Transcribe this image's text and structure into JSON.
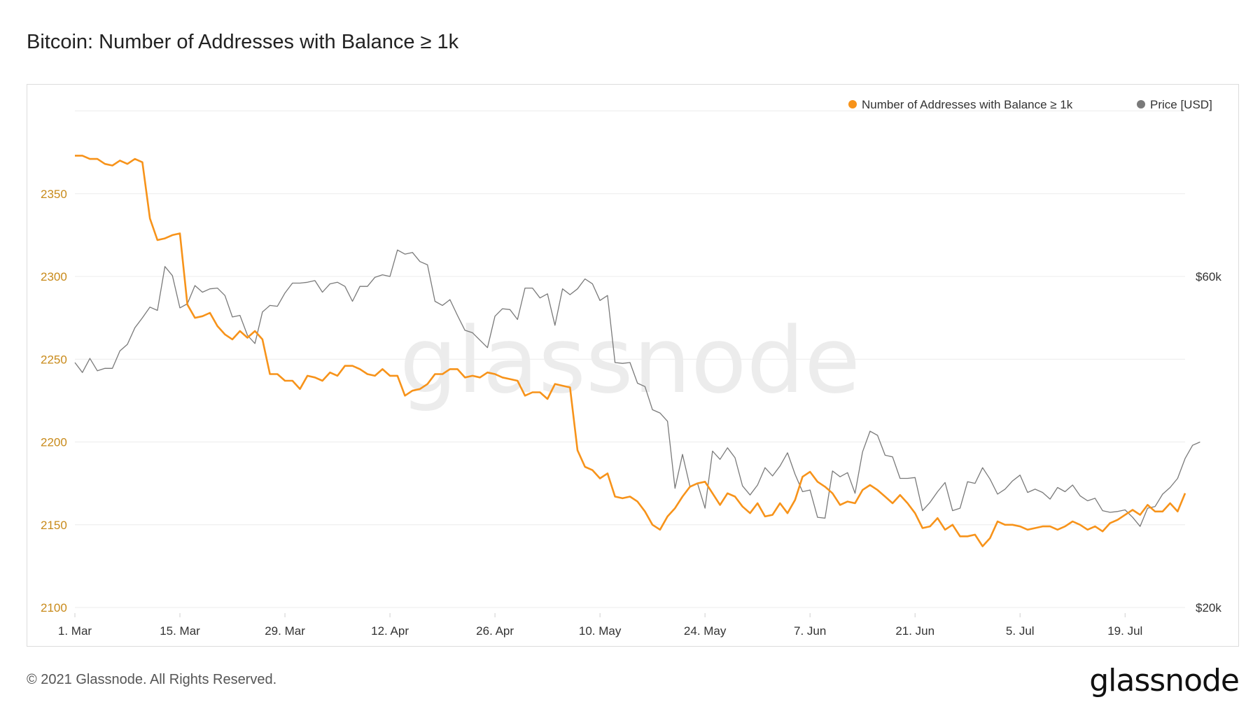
{
  "header": {
    "title": "Bitcoin: Number of Addresses with Balance ≥ 1k"
  },
  "footer": {
    "copyright": "© 2021 Glassnode. All Rights Reserved.",
    "logo_text": "glassnode"
  },
  "watermark": "glassnode",
  "colors": {
    "addresses": "#f7931a",
    "price": "#7a7a7a",
    "grid": "#ececec"
  },
  "chart_data": {
    "type": "line",
    "title": "Bitcoin: Number of Addresses with Balance ≥ 1k",
    "x_ticks": [
      "1. Mar",
      "15. Mar",
      "29. Mar",
      "12. Apr",
      "26. Apr",
      "10. May",
      "24. May",
      "7. Jun",
      "21. Jun",
      "5. Jul",
      "19. Jul"
    ],
    "x_start": "2021-03-01",
    "y_left": {
      "ticks": [
        "2100",
        "2150",
        "2200",
        "2250",
        "2300",
        "2350"
      ],
      "range": [
        2100,
        2400
      ]
    },
    "y_right": {
      "ticks": [
        "$20k",
        "$60k"
      ],
      "range": [
        20000,
        70000
      ]
    },
    "grid": true,
    "legend_position": "top-right",
    "series": [
      {
        "name": "Number of Addresses with Balance ≥ 1k",
        "axis": "left",
        "values": [
          2373,
          2373,
          2371,
          2371,
          2368,
          2367,
          2370,
          2368,
          2371,
          2369,
          2335,
          2322,
          2323,
          2325,
          2326,
          2283,
          2275,
          2276,
          2278,
          2270,
          2265,
          2262,
          2267,
          2263,
          2267,
          2262,
          2241,
          2241,
          2237,
          2237,
          2232,
          2240,
          2239,
          2237,
          2242,
          2240,
          2246,
          2246,
          2244,
          2241,
          2240,
          2244,
          2240,
          2240,
          2228,
          2231,
          2232,
          2235,
          2241,
          2241,
          2244,
          2244,
          2239,
          2240,
          2239,
          2242,
          2241,
          2239,
          2238,
          2237,
          2228,
          2230,
          2230,
          2226,
          2235,
          2234,
          2233,
          2195,
          2185,
          2183,
          2178,
          2181,
          2167,
          2166,
          2167,
          2164,
          2158,
          2150,
          2147,
          2155,
          2160,
          2167,
          2173,
          2175,
          2176,
          2169,
          2162,
          2169,
          2167,
          2161,
          2157,
          2163,
          2155,
          2156,
          2163,
          2157,
          2165,
          2179,
          2182,
          2176,
          2173,
          2169,
          2162,
          2164,
          2163,
          2171,
          2174,
          2171,
          2167,
          2163,
          2168,
          2163,
          2157,
          2148,
          2149,
          2154,
          2147,
          2150,
          2143,
          2143,
          2144,
          2137,
          2142,
          2152,
          2150,
          2150,
          2149,
          2147,
          2148,
          2149,
          2149,
          2147,
          2149,
          2152,
          2150,
          2147,
          2149,
          2146,
          2151,
          2153,
          2156,
          2159,
          2156,
          2162,
          2158,
          2158,
          2163,
          2158,
          2169
        ]
      },
      {
        "name": "Price [USD]",
        "axis": "right",
        "values": [
          49600,
          48400,
          50100,
          48600,
          48900,
          48900,
          51000,
          51800,
          53800,
          55000,
          56300,
          55900,
          61200,
          60100,
          56200,
          56700,
          58900,
          58100,
          58500,
          58600,
          57700,
          55100,
          55300,
          52900,
          51900,
          55700,
          56500,
          56400,
          58000,
          59200,
          59200,
          59300,
          59500,
          58100,
          59100,
          59300,
          58800,
          57000,
          58800,
          58800,
          59900,
          60200,
          60000,
          63200,
          62700,
          62900,
          61800,
          61400,
          57000,
          56500,
          57200,
          55300,
          53500,
          53200,
          52300,
          51400,
          55200,
          56100,
          56000,
          54800,
          58600,
          58600,
          57400,
          57900,
          54100,
          58500,
          57800,
          58500,
          59700,
          59100,
          57100,
          57700,
          49600,
          49500,
          49600,
          47100,
          46700,
          43900,
          43500,
          42500,
          34400,
          38500,
          34600,
          35000,
          32000,
          38900,
          37900,
          39300,
          38100,
          34700,
          33600,
          34800,
          36900,
          35900,
          37100,
          38700,
          36100,
          34000,
          34200,
          30900,
          30800,
          36500,
          35800,
          36300,
          33800,
          38800,
          41300,
          40800,
          38400,
          38200,
          35600,
          35600,
          35700,
          31700,
          32700,
          34000,
          35100,
          31700,
          32000,
          35200,
          35000,
          36900,
          35500,
          33700,
          34300,
          35300,
          36000,
          33900,
          34300,
          33900,
          33100,
          34500,
          34000,
          34800,
          33500,
          32900,
          33200,
          31700,
          31500,
          31600,
          31800,
          30900,
          29800,
          32000,
          32200,
          33700,
          34500,
          35600,
          38000,
          39600,
          40000
        ]
      }
    ]
  }
}
